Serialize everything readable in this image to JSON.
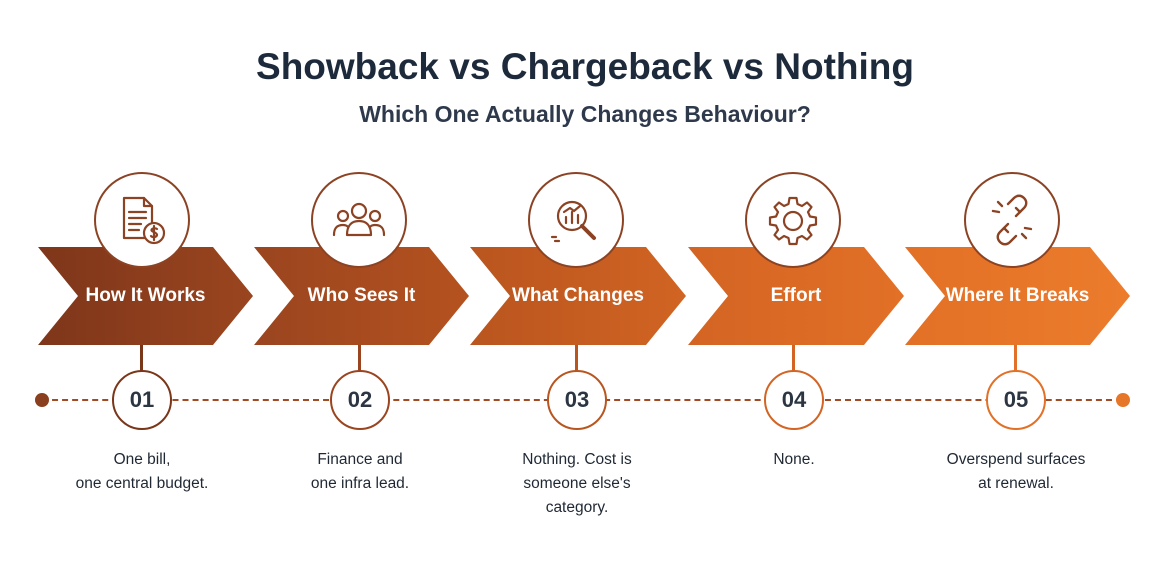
{
  "title": "Showback vs Chargeback vs Nothing",
  "subtitle": "Which One Actually Changes Behaviour?",
  "colors": {
    "step1": "#8a3f1e",
    "step2": "#a94c20",
    "step3": "#c35b22",
    "step4": "#d96a24",
    "step5": "#e67628",
    "icon_stroke": "#8c4324"
  },
  "steps": [
    {
      "label": "How It Works",
      "number": "01",
      "icon": "invoice-dollar-icon",
      "desc_lines": [
        "One bill,",
        "one central budget."
      ]
    },
    {
      "label": "Who Sees It",
      "number": "02",
      "icon": "people-group-icon",
      "desc_lines": [
        "Finance and",
        "one infra lead."
      ]
    },
    {
      "label": "What Changes",
      "number": "03",
      "icon": "chart-magnifier-icon",
      "desc_lines": [
        "Nothing. Cost is",
        "someone else's",
        "category."
      ]
    },
    {
      "label": "Effort",
      "number": "04",
      "icon": "gear-icon",
      "desc_lines": [
        "None."
      ]
    },
    {
      "label": "Where It Breaks",
      "number": "05",
      "icon": "broken-chain-icon",
      "desc_lines": [
        "Overspend surfaces",
        "at renewal."
      ]
    }
  ]
}
